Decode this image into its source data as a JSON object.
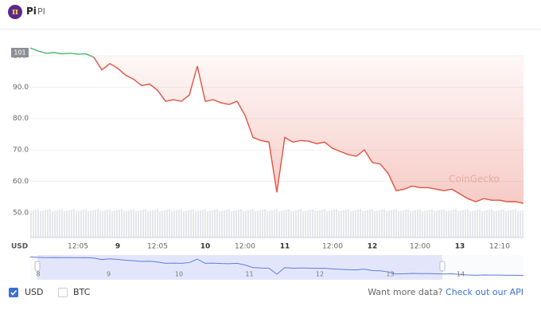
{
  "header": {
    "name": "Pi",
    "symbol": "PI"
  },
  "chart_data": {
    "type": "line",
    "categories": [
      null,
      null,
      null,
      null,
      null,
      null,
      "12:05",
      null,
      null,
      null,
      null,
      "9",
      null,
      null,
      null,
      null,
      "12:05",
      null,
      null,
      null,
      null,
      null,
      "10",
      null,
      null,
      null,
      null,
      "12:00",
      null,
      null,
      null,
      null,
      "11",
      null,
      null,
      null,
      null,
      null,
      "12:00",
      null,
      null,
      null,
      null,
      "12",
      null,
      null,
      null,
      null,
      null,
      "12:00",
      null,
      null,
      null,
      null,
      "13",
      null,
      null,
      null,
      null,
      "12:10",
      null,
      null,
      null
    ],
    "values": [
      102.5,
      101.5,
      100.8,
      101.0,
      100.6,
      100.8,
      100.5,
      100.6,
      99.5,
      95.5,
      97.5,
      96.0,
      93.8,
      92.5,
      90.5,
      91.0,
      89.0,
      85.5,
      86.0,
      85.5,
      87.5,
      96.7,
      85.5,
      86.0,
      85.0,
      84.5,
      85.5,
      81.0,
      74.0,
      73.0,
      72.5,
      56.5,
      74.0,
      72.5,
      73.0,
      72.8,
      72.0,
      72.5,
      70.5,
      69.5,
      68.5,
      68.0,
      70.0,
      66.0,
      65.5,
      62.5,
      57.0,
      57.5,
      58.5,
      58.0,
      58.0,
      57.5,
      57.0,
      57.5,
      56.0,
      54.5,
      53.5,
      54.5,
      54.0,
      54.0,
      53.5,
      53.5,
      53.0
    ],
    "color": "#e15241",
    "up_color": "#4eb66b",
    "baseline": 100,
    "ylim": [
      41.6,
      107.6
    ],
    "yticks": [
      {
        "value": 50,
        "label": "50.0"
      },
      {
        "value": 60,
        "label": "60.0"
      },
      {
        "value": 70,
        "label": "70.0"
      },
      {
        "value": 80,
        "label": "80.0"
      },
      {
        "value": 90,
        "label": "90.0"
      },
      100
    ],
    "grid": true,
    "y_axis_label": "USD",
    "price_tag": 101,
    "watermark": "CoinGecko",
    "navigator_labels": [
      "8",
      "9",
      "10",
      "11",
      "12",
      "13",
      "14"
    ],
    "navigator_color": "#5b7ede"
  },
  "controls": {
    "options": [
      {
        "label": "USD",
        "checked": true
      },
      {
        "label": "BTC",
        "checked": false
      }
    ],
    "prompt": "Want more data?",
    "link": "Check out our API"
  }
}
